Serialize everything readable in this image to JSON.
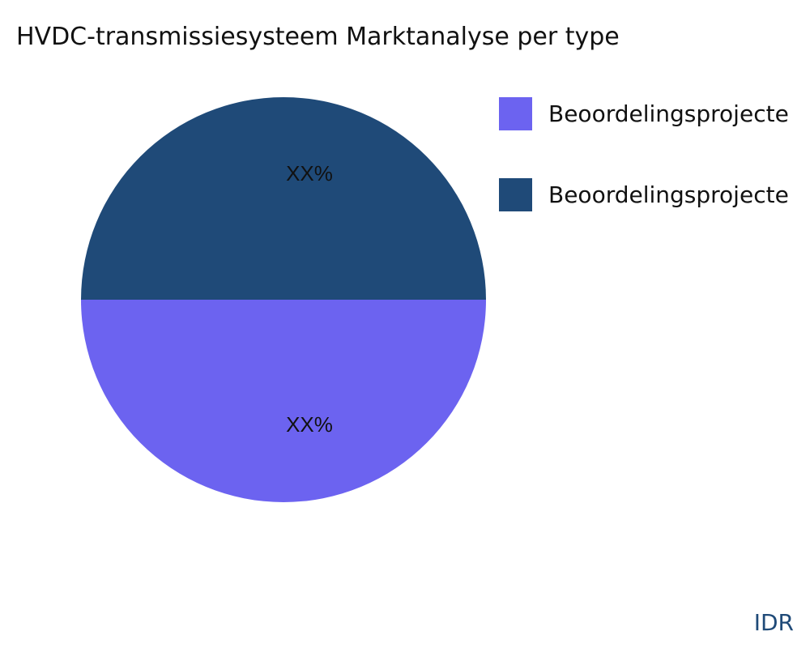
{
  "chart_data": {
    "type": "pie",
    "title": "HVDC-transmissiesysteem Marktanalyse per type",
    "legend_position": "right",
    "slices": [
      {
        "name": "Beoordelingsprojecte",
        "value": 50,
        "label": "XX%",
        "color": "#6c63f0"
      },
      {
        "name": "Beoordelingsprojecte",
        "value": 50,
        "label": "XX%",
        "color": "#1f4a78"
      }
    ]
  },
  "brand": "IDR"
}
